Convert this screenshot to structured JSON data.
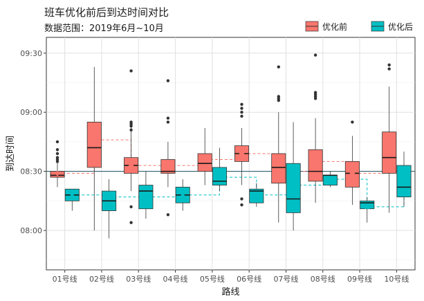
{
  "chart_data": {
    "type": "boxplot",
    "title": "班车优化前后到达时间对比",
    "subtitle": "数据范围：2019年6月~10月",
    "xlabel": "路线",
    "ylabel": "到达时间",
    "categories": [
      "01号线",
      "02号线",
      "03号线",
      "04号线",
      "05号线",
      "06号线",
      "07号线",
      "08号线",
      "09号线",
      "10号线"
    ],
    "y_axis": {
      "unit": "time of day",
      "range": [
        "07:40",
        "09:38"
      ],
      "ticks": [
        "08:00",
        "08:30",
        "09:00",
        "09:30"
      ]
    },
    "reference_line": "08:30",
    "grid": true,
    "legend": {
      "placement": "top-right"
    },
    "series": [
      {
        "name": "优化前",
        "color": "#F8766D",
        "boxes": [
          {
            "min": "08:22",
            "q1": "08:27",
            "median": "08:28",
            "q3": "08:30",
            "max": "08:37",
            "mean": "08:29",
            "outliers": [
              "08:41",
              "08:39",
              "08:37",
              "08:36",
              "08:35",
              "08:45"
            ]
          },
          {
            "min": "08:00",
            "q1": "08:32",
            "median": "08:42",
            "q3": "08:55",
            "max": "09:23",
            "mean": "08:46",
            "outliers": []
          },
          {
            "min": "08:20",
            "q1": "08:29",
            "median": "08:33",
            "q3": "08:37",
            "max": "08:54",
            "mean": "08:33",
            "outliers": [
              "09:21",
              "08:55",
              "08:54",
              "08:53",
              "08:51",
              "08:12",
              "08:04"
            ]
          },
          {
            "min": "08:22",
            "q1": "08:29",
            "median": "08:30",
            "q3": "08:36",
            "max": "08:45",
            "mean": "08:33",
            "outliers": [
              "09:16",
              "08:57",
              "08:55",
              "08:08"
            ]
          },
          {
            "min": "08:23",
            "q1": "08:30",
            "median": "08:34",
            "q3": "08:39",
            "max": "08:52",
            "mean": "08:36",
            "outliers": []
          },
          {
            "min": "08:23",
            "q1": "08:35",
            "median": "08:39",
            "q3": "08:43",
            "max": "08:52",
            "mean": "08:39",
            "outliers": [
              "09:04",
              "09:02",
              "09:00",
              "08:58",
              "08:16",
              "08:13"
            ]
          },
          {
            "min": "08:04",
            "q1": "08:24",
            "median": "08:32",
            "q3": "08:39",
            "max": "09:00",
            "mean": "08:30",
            "outliers": [
              "09:23",
              "09:08",
              "09:07",
              "09:06"
            ]
          },
          {
            "min": "08:14",
            "q1": "08:25",
            "median": "08:30",
            "q3": "08:41",
            "max": "08:57",
            "mean": "08:35",
            "outliers": [
              "09:29",
              "09:10",
              "09:09",
              "09:08",
              "09:07"
            ]
          },
          {
            "min": "08:13",
            "q1": "08:22",
            "median": "08:29",
            "q3": "08:35",
            "max": "08:48",
            "mean": "08:29",
            "outliers": [
              "08:55"
            ]
          },
          {
            "min": "08:09",
            "q1": "08:29",
            "median": "08:37",
            "q3": "08:50",
            "max": "09:13",
            "mean": "08:40",
            "outliers": [
              "09:24",
              "09:22"
            ]
          }
        ]
      },
      {
        "name": "优化后",
        "color": "#00BFC4",
        "boxes": [
          {
            "min": "08:10",
            "q1": "08:15",
            "median": "08:18",
            "q3": "08:21",
            "max": "08:21",
            "mean": "08:18",
            "outliers": []
          },
          {
            "min": "07:56",
            "q1": "08:10",
            "median": "08:15",
            "q3": "08:20",
            "max": "08:26",
            "mean": "08:17",
            "outliers": []
          },
          {
            "min": "08:06",
            "q1": "08:11",
            "median": "08:20",
            "q3": "08:23",
            "max": "08:30",
            "mean": "08:17",
            "outliers": []
          },
          {
            "min": "08:10",
            "q1": "08:14",
            "median": "08:18",
            "q3": "08:22",
            "max": "08:26",
            "mean": "08:18",
            "outliers": []
          },
          {
            "min": "08:20",
            "q1": "08:23",
            "median": "08:25",
            "q3": "08:32",
            "max": "08:42",
            "mean": "08:27",
            "outliers": []
          },
          {
            "min": "08:12",
            "q1": "08:14",
            "median": "08:20",
            "q3": "08:21",
            "max": "08:24",
            "mean": "08:18",
            "outliers": []
          },
          {
            "min": "08:00",
            "q1": "08:09",
            "median": "08:16",
            "q3": "08:34",
            "max": "08:55",
            "mean": "08:23",
            "outliers": []
          },
          {
            "min": "08:22",
            "q1": "08:23",
            "median": "08:28",
            "q3": "08:28",
            "max": "08:30",
            "mean": "08:26",
            "outliers": []
          },
          {
            "min": "08:04",
            "q1": "08:11",
            "median": "08:14",
            "q3": "08:15",
            "max": "08:17",
            "mean": "08:12",
            "outliers": []
          },
          {
            "min": "08:12",
            "q1": "08:17",
            "median": "08:22",
            "q3": "08:33",
            "max": "08:40",
            "mean": "08:25",
            "outliers": []
          }
        ]
      }
    ]
  }
}
